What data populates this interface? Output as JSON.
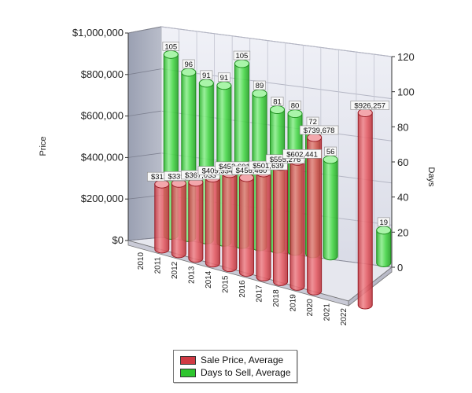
{
  "chart_data": {
    "type": "bar",
    "style": "3d-cylinder",
    "categories": [
      "2010",
      "2011",
      "2012",
      "2013",
      "2014",
      "2015",
      "2016",
      "2017",
      "2018",
      "2019",
      "2020",
      "2021",
      "2022"
    ],
    "series": [
      {
        "name": "Sale Price, Average",
        "axis": "left",
        "color": "#e0505a",
        "values": [
          313505,
          339320,
          367033,
          409334,
          453601,
          456460,
          501639,
          555276,
          602441,
          739678,
          null,
          null,
          926257
        ],
        "labels": [
          "$313,505",
          "$339,320",
          "$367,033",
          "$409,334",
          "$453,601",
          "$456,460",
          "$501,639",
          "$555,276",
          "$602,441",
          "$739,678",
          "",
          "",
          "$926,257"
        ]
      },
      {
        "name": "Days to Sell, Average",
        "axis": "right",
        "color": "#37cc37",
        "values": [
          105,
          96,
          91,
          91,
          105,
          89,
          81,
          80,
          72,
          56,
          null,
          null,
          19
        ],
        "labels": [
          "105",
          "96",
          "91",
          "91",
          "105",
          "89",
          "81",
          "80",
          "72",
          "56",
          "",
          "",
          "19"
        ]
      }
    ],
    "yaxis_left": {
      "title": "Price",
      "range": [
        0,
        1000000
      ],
      "ticks": [
        "$0",
        "$200,000",
        "$400,000",
        "$600,000",
        "$800,000",
        "$1,000,000"
      ]
    },
    "yaxis_right": {
      "title": "Days",
      "range": [
        0,
        120
      ],
      "ticks": [
        "0",
        "20",
        "40",
        "60",
        "80",
        "100",
        "120"
      ]
    },
    "grid": true,
    "legend_position": "bottom-center"
  }
}
